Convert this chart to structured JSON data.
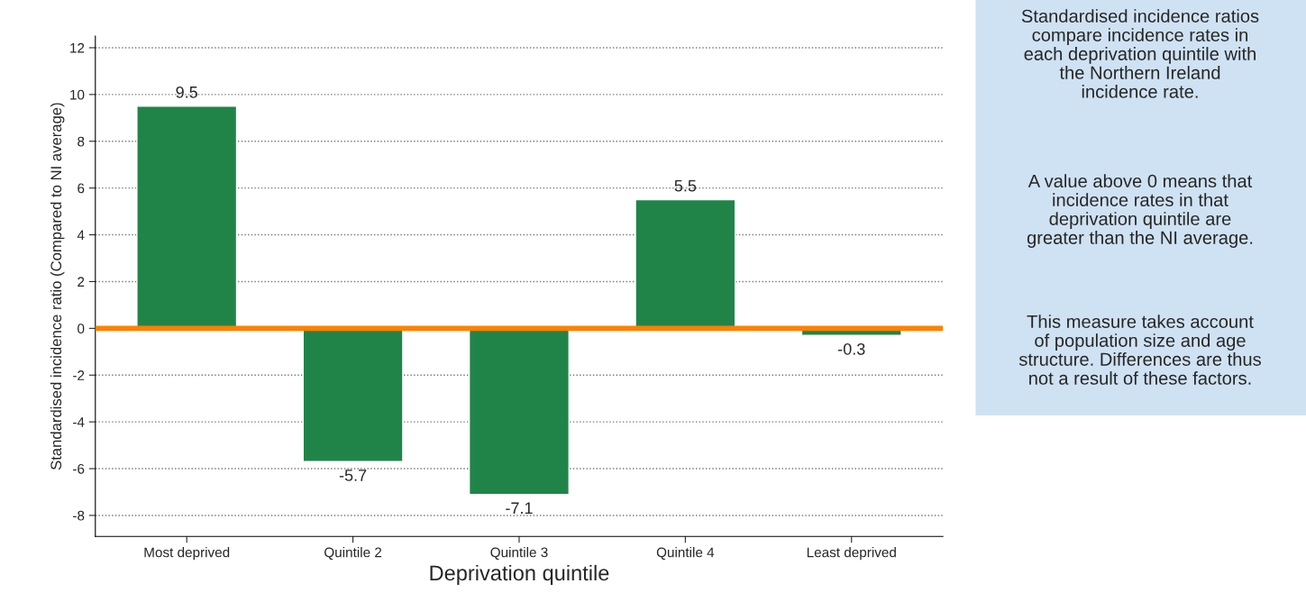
{
  "chart_data": {
    "type": "bar",
    "xlabel": "Deprivation quintile",
    "ylabel": "Standardised incidence ratio (Compared to NI average)",
    "categories": [
      "Most deprived",
      "Quintile 2",
      "Quintile 3",
      "Quintile 4",
      "Least deprived"
    ],
    "values": [
      9.5,
      -5.7,
      -7.1,
      5.5,
      -0.3
    ],
    "color": "#208449",
    "data_labels": true,
    "ylim": [
      -8.9,
      12.5
    ],
    "yticks": [
      -8,
      -6,
      -4,
      -2,
      0,
      2,
      4,
      6,
      8,
      10,
      12
    ],
    "grid": "y",
    "ref_lines": [
      {
        "axis": "y",
        "value": 0,
        "color": "#ff8000"
      }
    ],
    "annotations": [
      "Standardised incidence ratios\ncompare incidence rates in\neach deprivation quintile with\nthe Northern Ireland\nincidence rate.",
      "A value above 0 means that\nincidence rates in that\ndeprivation quintile are\ngreater than the NI average.",
      "This measure takes account\nof population size and age\nstructure. Differences are thus\nnot a result of these factors."
    ]
  }
}
